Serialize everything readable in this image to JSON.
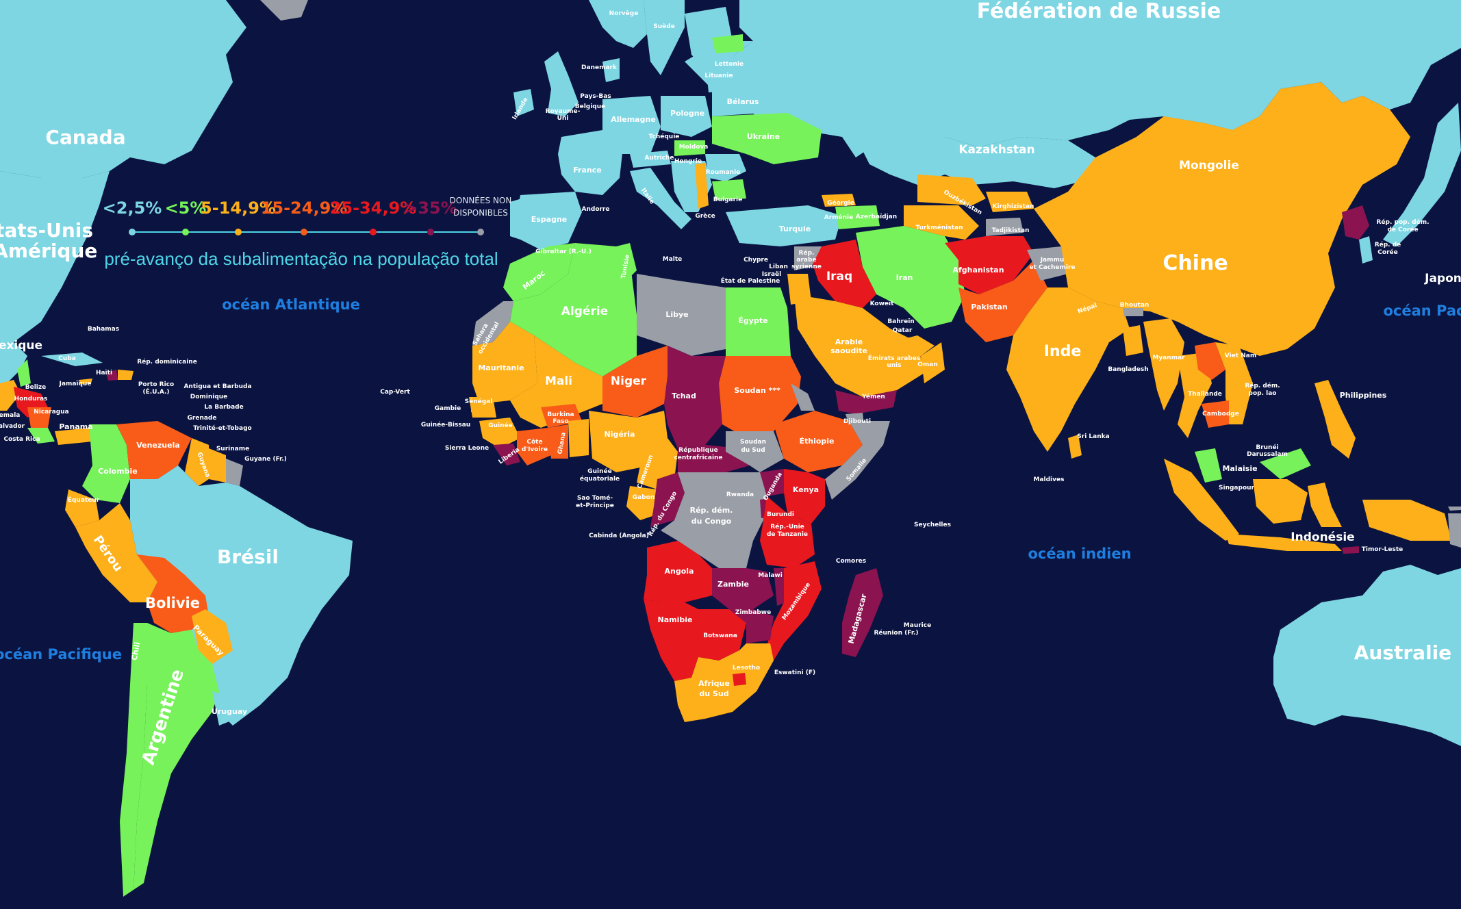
{
  "colors": {
    "ocean": "#0b1440",
    "lt2_5": "#7ed6e3",
    "lt5": "#77f25a",
    "c5_14_9": "#fdb01a",
    "c15_24_9": "#f85c18",
    "c25_34_9": "#e8181f",
    "gt35": "#8a1350",
    "na": "#9a9ea6"
  },
  "legend": {
    "title": "pré-avanço da subalimentação na população total",
    "items": [
      {
        "label": "<2,5%",
        "color": "#7ed6e3"
      },
      {
        "label": "<5%",
        "color": "#77f25a"
      },
      {
        "label": "5-14,9%",
        "color": "#fdb01a"
      },
      {
        "label": "15-24,9%",
        "color": "#f85c18"
      },
      {
        "label": "25-34,9%",
        "color": "#e8181f"
      },
      {
        "label": ">35%",
        "color": "#8a1350"
      }
    ],
    "na_line1": "DONNÉES NON",
    "na_line2": "DISPONIBLES"
  },
  "oceans": {
    "atlantique": "océan Atlantique",
    "pacifique_w": "océan Pacifique",
    "pacifique_e": "océan Pac",
    "indien": "océan indien"
  },
  "labels": {
    "russie": "Fédération de Russie",
    "canada": "Canada",
    "usa1": "États-Unis",
    "usa2": "'Amérique",
    "mexique": "exique",
    "bresil": "Brésil",
    "argentine": "Argentine",
    "bolivie": "Bolivie",
    "perou": "Pérou",
    "colombie": "Colombie",
    "venezuela": "Venezuela",
    "equateur": "Équateur",
    "paraguay": "Paraguay",
    "uruguay": "Uruguay",
    "chili": "Chili",
    "guyana": "Guyana",
    "suriname": "Suriname",
    "guyane": "Guyane (Fr.)",
    "chine": "Chine",
    "inde": "Inde",
    "mongolie": "Mongolie",
    "kazakhstan": "Kazakhstan",
    "iran": "Iran",
    "iraq": "Iraq",
    "afghanistan": "Afghanistan",
    "pakistan": "Pakistan",
    "arabie1": "Arabie",
    "arabie2": "saoudite",
    "yemen": "Yémen",
    "oman": "Oman",
    "turquie": "Turquie",
    "algerie": "Algérie",
    "libye": "Libye",
    "egypte": "Égypte",
    "maroc": "Maroc",
    "mali": "Mali",
    "niger": "Niger",
    "tchad": "Tchad",
    "soudan": "Soudan ***",
    "mauritanie": "Mauritanie",
    "nigeria": "Nigéria",
    "ethiopie": "Éthiopie",
    "somalie": "Somalie",
    "kenya": "Kenya",
    "rdc1": "Rép. dém.",
    "rdc2": "du Congo",
    "angola": "Angola",
    "zambie": "Zambie",
    "namibie": "Namibie",
    "botswana": "Botswana",
    "zimbabwe": "Zimbabwe",
    "afsud1": "Afrique",
    "afsud2": "du Sud",
    "madagascar": "Madagascar",
    "mozambique": "Mozambique",
    "tanzanie1": "Rép.-Unie",
    "tanzanie2": "de Tanzanie",
    "ouganda": "Ouganda",
    "soudansud1": "Soudan",
    "soudansud2": "du Sud",
    "rca1": "République",
    "rca2": "centrafricaine",
    "guinee": "Guinée",
    "ghana": "Ghana",
    "cote1": "Côte",
    "cote2": "d'Ivoire",
    "burkina1": "Burkina",
    "burkina2": "Faso",
    "gabon": "Gabon",
    "cameroun": "Cameroun",
    "senegal": "Sénégal",
    "liberia": "Liberia",
    "djibouti": "Djibouti",
    "malawi": "Malawi",
    "burundi": "Burundi",
    "rwanda": "Rwanda",
    "lesotho": "Lesotho",
    "eswatini": "Eswatini (F)",
    "australie": "Australie",
    "indonesie": "Indonésie",
    "philippines": "Philippines",
    "malaisie": "Malaisie",
    "thailande": "Thaïlande",
    "cambodge": "Cambodge",
    "myanmar": "Myanmar",
    "vietnam": "Viet Nam",
    "japon": "Japon",
    "coree_n1": "Rép. pop. dém.",
    "coree_n2": "de Corée",
    "coree_s1": "Rép. de",
    "coree_s2": "Corée",
    "laos1": "Rép. dém.",
    "laos2": "pop. lao",
    "bangladesh": "Bangladesh",
    "srilanka": "Sri Lanka",
    "nepal": "Népal",
    "bhoutan": "Bhoutan",
    "france": "France",
    "espagne": "Espagne",
    "allemagne": "Allemagne",
    "pologne": "Pologne",
    "ukraine": "Ukraine",
    "belarus": "Bélarus",
    "roumanie": "Roumanie",
    "suede": "Suède",
    "norvege": "Norvège",
    "danemark": "Danemark",
    "paysbas": "Pays-Bas",
    "belgique": "Belgique",
    "royaumeuni1": "Royaume-",
    "royaumeuni2": "Uni",
    "irlande": "Irlande",
    "italie": "Italie",
    "lituanie": "Lituanie",
    "lettonie": "Lettonie",
    "tchequie": "Tchéquie",
    "autriche": "Autriche",
    "hongrie": "Hongrie",
    "moldova": "Moldova",
    "bulgarie": "Bulgarie",
    "grece": "Grèce",
    "georgie": "Géorgie",
    "armenie": "Arménie",
    "azerbaidjan": "Azerbaïdjan",
    "ouzbekistan": "Ouzbékistan",
    "turkmenistan": "Turkménistan",
    "kirghizistan": "Kirghizistan",
    "tadjikistan": "Tadjikistan",
    "jammu1": "Jammu",
    "jammu2": "et Cachemire",
    "syrie1": "Rép.",
    "syrie2": "arabe",
    "syrie3": "syrienne",
    "liban": "Liban",
    "israel": "Israël",
    "palestine": "État de Palestine",
    "chypre": "Chypre",
    "malte": "Malte",
    "gibraltar": "Gibraltar (R.-U.)",
    "koweit": "Koweït",
    "bahrein": "Bahreïn",
    "qatar": "Qatar",
    "emirats1": "Émirats arabes",
    "emirats2": "unis",
    "sahara1": "Sahara",
    "sahara2": "occidental",
    "tunisie": "Tunisie",
    "capvert": "Cap-Vert",
    "gambie": "Gambie",
    "guineebissau": "Guinée-Bissau",
    "sierraleone": "Sierra Leone",
    "guineeeq1": "Guinée",
    "guineeeq2": "équatoriale",
    "saotome1": "Sao Tomé-",
    "saotome2": "et-Principe",
    "cabinda": "Cabinda (Angola)",
    "repcongo": "Rép. du Congo",
    "seychelles": "Seychelles",
    "comores": "Comores",
    "maurice": "Maurice",
    "reunion": "Réunion (Fr.)",
    "maldives": "Maldives",
    "brunei1": "Brunéi",
    "brunei2": "Darussalam",
    "singapour": "Singapour",
    "timor": "Timor-Leste",
    "bahamas": "Bahamas",
    "cuba": "Cuba",
    "haiti": "Haïti",
    "repdom": "Rép. dominicaine",
    "jamaique": "Jamaïque",
    "portorico1": "Porto Rico",
    "portorico2": "(É.U.A.)",
    "antigua": "Antigua et Barbuda",
    "dominique": "Dominique",
    "barbade": "La Barbade",
    "grenade": "Grenade",
    "trinite": "Trinité-et-Tobago",
    "belize": "Belize",
    "guatemala": "emala",
    "salvador": "alvador",
    "nicaragua": "Nicaragua",
    "honduras": "Honduras",
    "costarica": "Costa Rica",
    "panama": "Panama",
    "andorre": "Andorre"
  }
}
